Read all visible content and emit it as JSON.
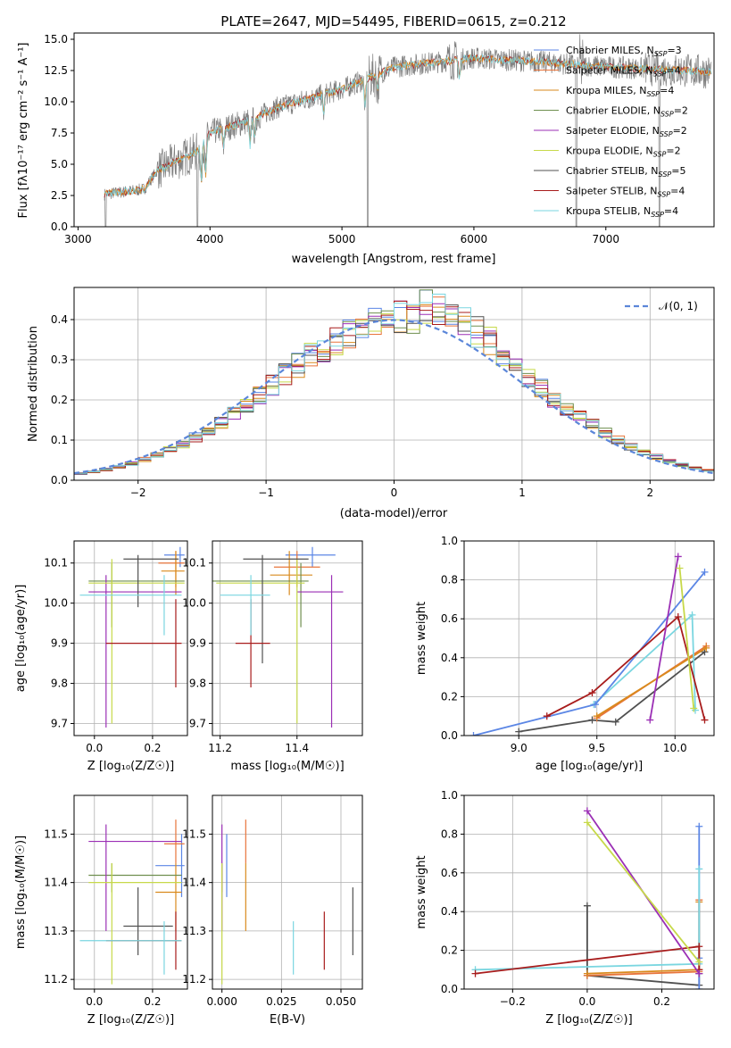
{
  "colors": {
    "chabrier_miles": "#5b86e5",
    "salpeter_miles": "#e8743b",
    "kroupa_miles": "#d98a1d",
    "chabrier_elodie": "#6f8f4f",
    "salpeter_elodie": "#9b2fb5",
    "kroupa_elodie": "#c7d94a",
    "chabrier_stelib": "#505050",
    "salpeter_stelib": "#a81c1c",
    "kroupa_stelib": "#7ad6e0",
    "normal": "#5b86d9"
  },
  "chart_data": [
    {
      "id": "spectrum",
      "type": "line",
      "title": "PLATE=2647, MJD=54495, FIBERID=0615, z=0.212",
      "xlabel": "wavelength [Angstrom, rest frame]",
      "ylabel": "Flux [fλ10⁻¹⁷ erg cm⁻² s⁻¹ A⁻¹]",
      "xlim": [
        2970,
        7820
      ],
      "ylim": [
        0,
        15.5
      ],
      "xticks": [
        "3000",
        "4000",
        "5000",
        "6000",
        "7000"
      ],
      "yticks": [
        "0.0",
        "2.5",
        "5.0",
        "7.5",
        "10.0",
        "12.5",
        "15.0"
      ],
      "continuum_knots": [
        [
          3200,
          2.6
        ],
        [
          3500,
          3.0
        ],
        [
          3600,
          4.5
        ],
        [
          3900,
          6.0
        ],
        [
          4000,
          7.5
        ],
        [
          4300,
          8.5
        ],
        [
          4500,
          9.5
        ],
        [
          5000,
          11.0
        ],
        [
          5400,
          12.8
        ],
        [
          6000,
          13.5
        ],
        [
          6500,
          13.2
        ],
        [
          7000,
          12.8
        ],
        [
          7400,
          12.6
        ],
        [
          7800,
          12.4
        ]
      ],
      "legend": [
        {
          "label": "Chabrier MILES, N",
          "sub": "SSP",
          "n": "=3",
          "color_key": "chabrier_miles"
        },
        {
          "label": "Salpeter MILES, N",
          "sub": "SSP",
          "n": "=4",
          "color_key": "salpeter_miles"
        },
        {
          "label": "Kroupa MILES, N",
          "sub": "SSP",
          "n": "=4",
          "color_key": "kroupa_miles"
        },
        {
          "label": "Chabrier ELODIE, N",
          "sub": "SSP",
          "n": "=2",
          "color_key": "chabrier_elodie"
        },
        {
          "label": "Salpeter ELODIE, N",
          "sub": "SSP",
          "n": "=2",
          "color_key": "salpeter_elodie"
        },
        {
          "label": "Kroupa ELODIE, N",
          "sub": "SSP",
          "n": "=2",
          "color_key": "kroupa_elodie"
        },
        {
          "label": "Chabrier STELIB, N",
          "sub": "SSP",
          "n": "=5",
          "color_key": "chabrier_stelib"
        },
        {
          "label": "Salpeter STELIB, N",
          "sub": "SSP",
          "n": "=4",
          "color_key": "salpeter_stelib"
        },
        {
          "label": "Kroupa STELIB, N",
          "sub": "SSP",
          "n": "=4",
          "color_key": "kroupa_stelib"
        }
      ]
    },
    {
      "id": "residuals",
      "type": "line",
      "xlabel": "(data-model)/error",
      "ylabel": "Normed distribution",
      "xlim": [
        -2.5,
        2.5
      ],
      "ylim": [
        0,
        0.48
      ],
      "xticks": [
        "−2",
        "−1",
        "0",
        "1",
        "2"
      ],
      "yticks": [
        "0.0",
        "0.1",
        "0.2",
        "0.3",
        "0.4"
      ],
      "legend_label": "𝒩(0, 1)",
      "grid": true
    },
    {
      "id": "age_vs_Z",
      "type": "scatter",
      "xlabel": "Z [log₁₀(Z/Z☉)]",
      "ylabel": "age  [log₁₀(age/yr)]",
      "xlim": [
        -0.07,
        0.32
      ],
      "ylim": [
        9.67,
        10.155
      ],
      "xticks": [
        "0.0",
        "0.2"
      ],
      "yticks": [
        "9.7",
        "9.8",
        "9.9",
        "10.0",
        "10.1"
      ],
      "points": [
        {
          "k": "chabrier_miles",
          "x": 0.295,
          "y": 10.12,
          "xe": [
            0.24,
            0.31
          ],
          "ye": [
            10.09,
            10.14
          ]
        },
        {
          "k": "salpeter_miles",
          "x": 0.28,
          "y": 10.1,
          "xe": [
            0.22,
            0.31
          ],
          "ye": [
            10.04,
            10.13
          ]
        },
        {
          "k": "kroupa_miles",
          "x": 0.28,
          "y": 10.08,
          "xe": [
            0.23,
            0.31
          ],
          "ye": [
            10.02,
            10.13
          ]
        },
        {
          "k": "chabrier_elodie",
          "x": 0.06,
          "y": 10.055,
          "xe": [
            -0.02,
            0.31
          ],
          "ye": [
            9.94,
            10.1
          ]
        },
        {
          "k": "salpeter_elodie",
          "x": 0.04,
          "y": 10.028,
          "xe": [
            -0.02,
            0.3
          ],
          "ye": [
            9.69,
            10.07
          ]
        },
        {
          "k": "kroupa_elodie",
          "x": 0.06,
          "y": 10.05,
          "xe": [
            -0.02,
            0.31
          ],
          "ye": [
            9.7,
            10.11
          ]
        },
        {
          "k": "chabrier_stelib",
          "x": 0.15,
          "y": 10.11,
          "xe": [
            0.1,
            0.29
          ],
          "ye": [
            9.99,
            10.12
          ]
        },
        {
          "k": "salpeter_stelib",
          "x": 0.28,
          "y": 9.9,
          "xe": [
            0.04,
            0.3
          ],
          "ye": [
            9.79,
            10.01
          ]
        },
        {
          "k": "kroupa_stelib",
          "x": 0.24,
          "y": 10.02,
          "xe": [
            -0.05,
            0.3
          ],
          "ye": [
            9.92,
            10.07
          ]
        }
      ]
    },
    {
      "id": "age_vs_mass",
      "type": "scatter",
      "xlabel": "mass [log₁₀(M/M☉)]",
      "ylabel": "",
      "xlim": [
        11.18,
        11.57
      ],
      "ylim": [
        9.67,
        10.155
      ],
      "xticks": [
        "11.2",
        "11.4"
      ],
      "yticks": [
        "9.7",
        "9.8",
        "9.9",
        "10.0",
        "10.1"
      ],
      "points": [
        {
          "k": "chabrier_miles",
          "x": 11.44,
          "y": 10.12,
          "xe": [
            11.37,
            11.5
          ],
          "ye": [
            10.09,
            10.14
          ]
        },
        {
          "k": "salpeter_miles",
          "x": 11.4,
          "y": 10.09,
          "xe": [
            11.34,
            11.46
          ],
          "ye": [
            10.04,
            10.13
          ]
        },
        {
          "k": "kroupa_miles",
          "x": 11.38,
          "y": 10.07,
          "xe": [
            11.33,
            11.44
          ],
          "ye": [
            10.02,
            10.13
          ]
        },
        {
          "k": "chabrier_elodie",
          "x": 11.41,
          "y": 10.055,
          "xe": [
            11.18,
            11.43
          ],
          "ye": [
            9.94,
            10.1
          ]
        },
        {
          "k": "salpeter_elodie",
          "x": 11.49,
          "y": 10.028,
          "xe": [
            11.4,
            11.52
          ],
          "ye": [
            9.69,
            10.07
          ]
        },
        {
          "k": "kroupa_elodie",
          "x": 11.4,
          "y": 10.05,
          "xe": [
            11.19,
            11.42
          ],
          "ye": [
            9.7,
            10.11
          ]
        },
        {
          "k": "chabrier_stelib",
          "x": 11.31,
          "y": 10.11,
          "xe": [
            11.26,
            11.43
          ],
          "ye": [
            9.85,
            10.12
          ]
        },
        {
          "k": "salpeter_stelib",
          "x": 11.28,
          "y": 9.9,
          "xe": [
            11.24,
            11.33
          ],
          "ye": [
            9.79,
            10.01
          ]
        },
        {
          "k": "kroupa_stelib",
          "x": 11.28,
          "y": 10.02,
          "xe": [
            11.2,
            11.33
          ],
          "ye": [
            9.92,
            10.07
          ]
        }
      ]
    },
    {
      "id": "weight_vs_age",
      "type": "line",
      "xlabel": "age  [log₁₀(age/yr)]",
      "ylabel": "mass weight",
      "xlim": [
        8.65,
        10.25
      ],
      "ylim": [
        0,
        1.0
      ],
      "xticks": [
        "9.0",
        "9.5",
        "10.0"
      ],
      "yticks": [
        "0.0",
        "0.2",
        "0.4",
        "0.6",
        "0.8",
        "1.0"
      ],
      "series": [
        {
          "k": "chabrier_stelib",
          "x": [
            9.0,
            9.47,
            9.62,
            10.19
          ],
          "y": [
            0.02,
            0.08,
            0.07,
            0.43
          ]
        },
        {
          "k": "salpeter_miles",
          "x": [
            9.5,
            10.2
          ],
          "y": [
            0.09,
            0.46
          ]
        },
        {
          "k": "kroupa_miles",
          "x": [
            9.5,
            10.2
          ],
          "y": [
            0.1,
            0.45
          ]
        },
        {
          "k": "kroupa_stelib",
          "x": [
            9.48,
            10.11,
            10.13
          ],
          "y": [
            0.16,
            0.62,
            0.13
          ]
        },
        {
          "k": "chabrier_miles",
          "x": [
            8.71,
            9.49,
            10.19
          ],
          "y": [
            0.0,
            0.16,
            0.84
          ]
        },
        {
          "k": "salpeter_stelib",
          "x": [
            9.18,
            9.47,
            10.02,
            10.19
          ],
          "y": [
            0.1,
            0.22,
            0.61,
            0.08
          ]
        },
        {
          "k": "salpeter_elodie",
          "x": [
            9.84,
            10.02
          ],
          "y": [
            0.08,
            0.92
          ]
        },
        {
          "k": "kroupa_elodie",
          "x": [
            10.03,
            10.12
          ],
          "y": [
            0.86,
            0.14
          ]
        }
      ]
    },
    {
      "id": "mass_vs_Z",
      "type": "scatter",
      "xlabel": "Z [log₁₀(Z/Z☉)]",
      "ylabel": "mass [log₁₀(M/M☉)]",
      "xlim": [
        -0.07,
        0.32
      ],
      "ylim": [
        11.18,
        11.58
      ],
      "xticks": [
        "0.0",
        "0.2"
      ],
      "yticks": [
        "11.2",
        "11.3",
        "11.4",
        "11.5"
      ],
      "points": [
        {
          "k": "chabrier_miles",
          "x": 0.3,
          "y": 11.435,
          "xe": [
            0.21,
            0.31
          ],
          "ye": [
            11.37,
            11.5
          ]
        },
        {
          "k": "salpeter_miles",
          "x": 0.28,
          "y": 11.48,
          "xe": [
            0.24,
            0.31
          ],
          "ye": [
            11.44,
            11.53
          ]
        },
        {
          "k": "kroupa_miles",
          "x": 0.28,
          "y": 11.38,
          "xe": [
            0.21,
            0.3
          ],
          "ye": [
            11.3,
            11.44
          ]
        },
        {
          "k": "chabrier_elodie",
          "x": 0.06,
          "y": 11.415,
          "xe": [
            -0.02,
            0.3
          ],
          "ye": [
            11.38,
            11.44
          ]
        },
        {
          "k": "salpeter_elodie",
          "x": 0.04,
          "y": 11.485,
          "xe": [
            -0.02,
            0.3
          ],
          "ye": [
            11.3,
            11.52
          ]
        },
        {
          "k": "kroupa_elodie",
          "x": 0.06,
          "y": 11.4,
          "xe": [
            -0.02,
            0.3
          ],
          "ye": [
            11.19,
            11.44
          ]
        },
        {
          "k": "chabrier_stelib",
          "x": 0.15,
          "y": 11.31,
          "xe": [
            0.1,
            0.27
          ],
          "ye": [
            11.25,
            11.39
          ]
        },
        {
          "k": "salpeter_stelib",
          "x": 0.28,
          "y": 11.28,
          "xe": [
            0.04,
            0.3
          ],
          "ye": [
            11.22,
            11.34
          ]
        },
        {
          "k": "kroupa_stelib",
          "x": 0.24,
          "y": 11.28,
          "xe": [
            -0.05,
            0.3
          ],
          "ye": [
            11.21,
            11.32
          ]
        }
      ]
    },
    {
      "id": "mass_vs_ebv",
      "type": "scatter",
      "xlabel": "E(B-V)",
      "ylabel": "",
      "xlim": [
        -0.004,
        0.059
      ],
      "ylim": [
        11.18,
        11.58
      ],
      "xticks": [
        "0.000",
        "0.025",
        "0.050"
      ],
      "yticks": [
        "11.2",
        "11.3",
        "11.4",
        "11.5"
      ],
      "points": [
        {
          "k": "chabrier_miles",
          "x": 0.002,
          "y": 11.435,
          "ye": [
            11.37,
            11.5
          ]
        },
        {
          "k": "salpeter_miles",
          "x": 0.01,
          "y": 11.48,
          "ye": [
            11.44,
            11.53
          ]
        },
        {
          "k": "kroupa_miles",
          "x": 0.01,
          "y": 11.38,
          "ye": [
            11.3,
            11.44
          ]
        },
        {
          "k": "chabrier_elodie",
          "x": 0.0,
          "y": 11.415,
          "ye": [
            11.38,
            11.44
          ]
        },
        {
          "k": "salpeter_elodie",
          "x": 0.0,
          "y": 11.485,
          "ye": [
            11.3,
            11.52
          ]
        },
        {
          "k": "kroupa_elodie",
          "x": 0.0,
          "y": 11.4,
          "ye": [
            11.19,
            11.44
          ]
        },
        {
          "k": "chabrier_stelib",
          "x": 0.055,
          "y": 11.31,
          "ye": [
            11.25,
            11.39
          ]
        },
        {
          "k": "salpeter_stelib",
          "x": 0.043,
          "y": 11.28,
          "ye": [
            11.22,
            11.34
          ]
        },
        {
          "k": "kroupa_stelib",
          "x": 0.03,
          "y": 11.28,
          "ye": [
            11.21,
            11.32
          ]
        }
      ]
    },
    {
      "id": "weight_vs_Z",
      "type": "line",
      "xlabel": "Z [log₁₀(Z/Z☉)]",
      "ylabel": "mass weight",
      "xlim": [
        -0.33,
        0.34
      ],
      "ylim": [
        0,
        1.0
      ],
      "xticks": [
        "−0.2",
        "0.0",
        "0.2"
      ],
      "yticks": [
        "0.0",
        "0.2",
        "0.4",
        "0.6",
        "0.8",
        "1.0"
      ],
      "series": [
        {
          "k": "chabrier_stelib",
          "x": [
            0.0,
            0.0,
            0.3,
            0.3
          ],
          "y": [
            0.43,
            0.07,
            0.02,
            0.08
          ]
        },
        {
          "k": "salpeter_miles",
          "x": [
            0.0,
            0.3,
            0.3
          ],
          "y": [
            0.07,
            0.09,
            0.46
          ]
        },
        {
          "k": "kroupa_miles",
          "x": [
            0.0,
            0.3,
            0.3
          ],
          "y": [
            0.08,
            0.1,
            0.45
          ]
        },
        {
          "k": "chabrier_miles",
          "x": [
            0.3,
            0.3,
            0.3
          ],
          "y": [
            0.0,
            0.16,
            0.84
          ]
        },
        {
          "k": "kroupa_stelib",
          "x": [
            -0.3,
            0.3,
            0.3
          ],
          "y": [
            0.1,
            0.13,
            0.62
          ]
        },
        {
          "k": "salpeter_stelib",
          "x": [
            -0.3,
            0.3,
            0.3
          ],
          "y": [
            0.08,
            0.22,
            0.1
          ]
        },
        {
          "k": "salpeter_elodie",
          "x": [
            0.0,
            0.3
          ],
          "y": [
            0.92,
            0.08
          ]
        },
        {
          "k": "kroupa_elodie",
          "x": [
            0.0,
            0.3
          ],
          "y": [
            0.86,
            0.14
          ]
        }
      ]
    }
  ]
}
